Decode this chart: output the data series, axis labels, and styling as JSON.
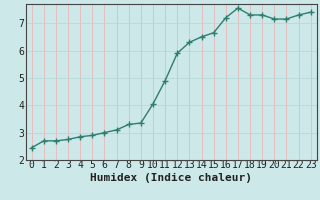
{
  "x": [
    0,
    1,
    2,
    3,
    4,
    5,
    6,
    7,
    8,
    9,
    10,
    11,
    12,
    13,
    14,
    15,
    16,
    17,
    18,
    19,
    20,
    21,
    22,
    23
  ],
  "y": [
    2.45,
    2.7,
    2.7,
    2.75,
    2.85,
    2.9,
    3.0,
    3.1,
    3.3,
    3.35,
    4.05,
    4.9,
    5.9,
    6.3,
    6.5,
    6.65,
    7.2,
    7.55,
    7.3,
    7.3,
    7.15,
    7.15,
    7.3,
    7.4
  ],
  "line_color": "#2e7d6e",
  "marker": "+",
  "marker_size": 4,
  "bg_color": "#cce8e8",
  "grid_color_v": "#e8b8b8",
  "grid_color_h": "#b8d8d8",
  "xlabel": "Humidex (Indice chaleur)",
  "xlabel_fontsize": 8,
  "tick_fontsize": 7,
  "ylim": [
    2.0,
    7.7
  ],
  "xlim": [
    -0.5,
    23.5
  ],
  "yticks": [
    2,
    3,
    4,
    5,
    6,
    7
  ],
  "xticks": [
    0,
    1,
    2,
    3,
    4,
    5,
    6,
    7,
    8,
    9,
    10,
    11,
    12,
    13,
    14,
    15,
    16,
    17,
    18,
    19,
    20,
    21,
    22,
    23
  ]
}
